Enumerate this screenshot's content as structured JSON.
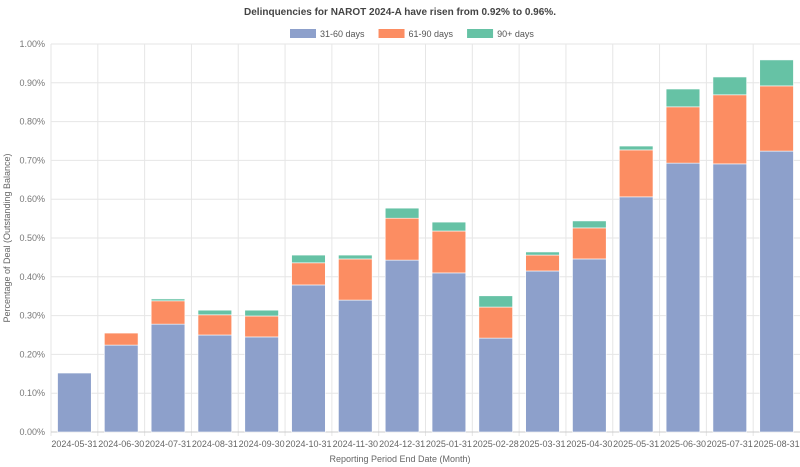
{
  "chart_data": {
    "type": "bar",
    "stacked": true,
    "title": "Delinquencies for NAROT 2024-A have risen from 0.92% to 0.96%.",
    "xlabel": "Reporting Period End Date (Month)",
    "ylabel": "Percentage of Deal (Outstanding Balance)",
    "ylim": [
      0,
      1.0
    ],
    "yticks": [
      "0.00%",
      "0.10%",
      "0.20%",
      "0.30%",
      "0.40%",
      "0.50%",
      "0.60%",
      "0.70%",
      "0.80%",
      "0.90%",
      "1.00%"
    ],
    "grid": true,
    "legend_position": "top-center",
    "categories": [
      "2024-05-31",
      "2024-06-30",
      "2024-07-31",
      "2024-08-31",
      "2024-09-30",
      "2024-10-31",
      "2024-11-30",
      "2024-12-31",
      "2025-01-31",
      "2025-02-28",
      "2025-03-31",
      "2025-04-30",
      "2025-05-31",
      "2025-06-30",
      "2025-07-31",
      "2025-08-31"
    ],
    "series": [
      {
        "name": "31-60 days",
        "color": "#8da0cb",
        "values": [
          0.152,
          0.224,
          0.278,
          0.25,
          0.245,
          0.379,
          0.34,
          0.443,
          0.41,
          0.242,
          0.415,
          0.446,
          0.606,
          0.693,
          0.691,
          0.724
        ]
      },
      {
        "name": "61-90 days",
        "color": "#fc8d62",
        "values": [
          0.0,
          0.031,
          0.06,
          0.052,
          0.054,
          0.057,
          0.106,
          0.108,
          0.108,
          0.08,
          0.041,
          0.08,
          0.121,
          0.145,
          0.178,
          0.168
        ]
      },
      {
        "name": "90+ days",
        "color": "#66c2a5",
        "values": [
          0.0,
          0.0,
          0.005,
          0.012,
          0.015,
          0.02,
          0.01,
          0.026,
          0.023,
          0.029,
          0.008,
          0.018,
          0.01,
          0.046,
          0.046,
          0.067
        ]
      }
    ]
  }
}
